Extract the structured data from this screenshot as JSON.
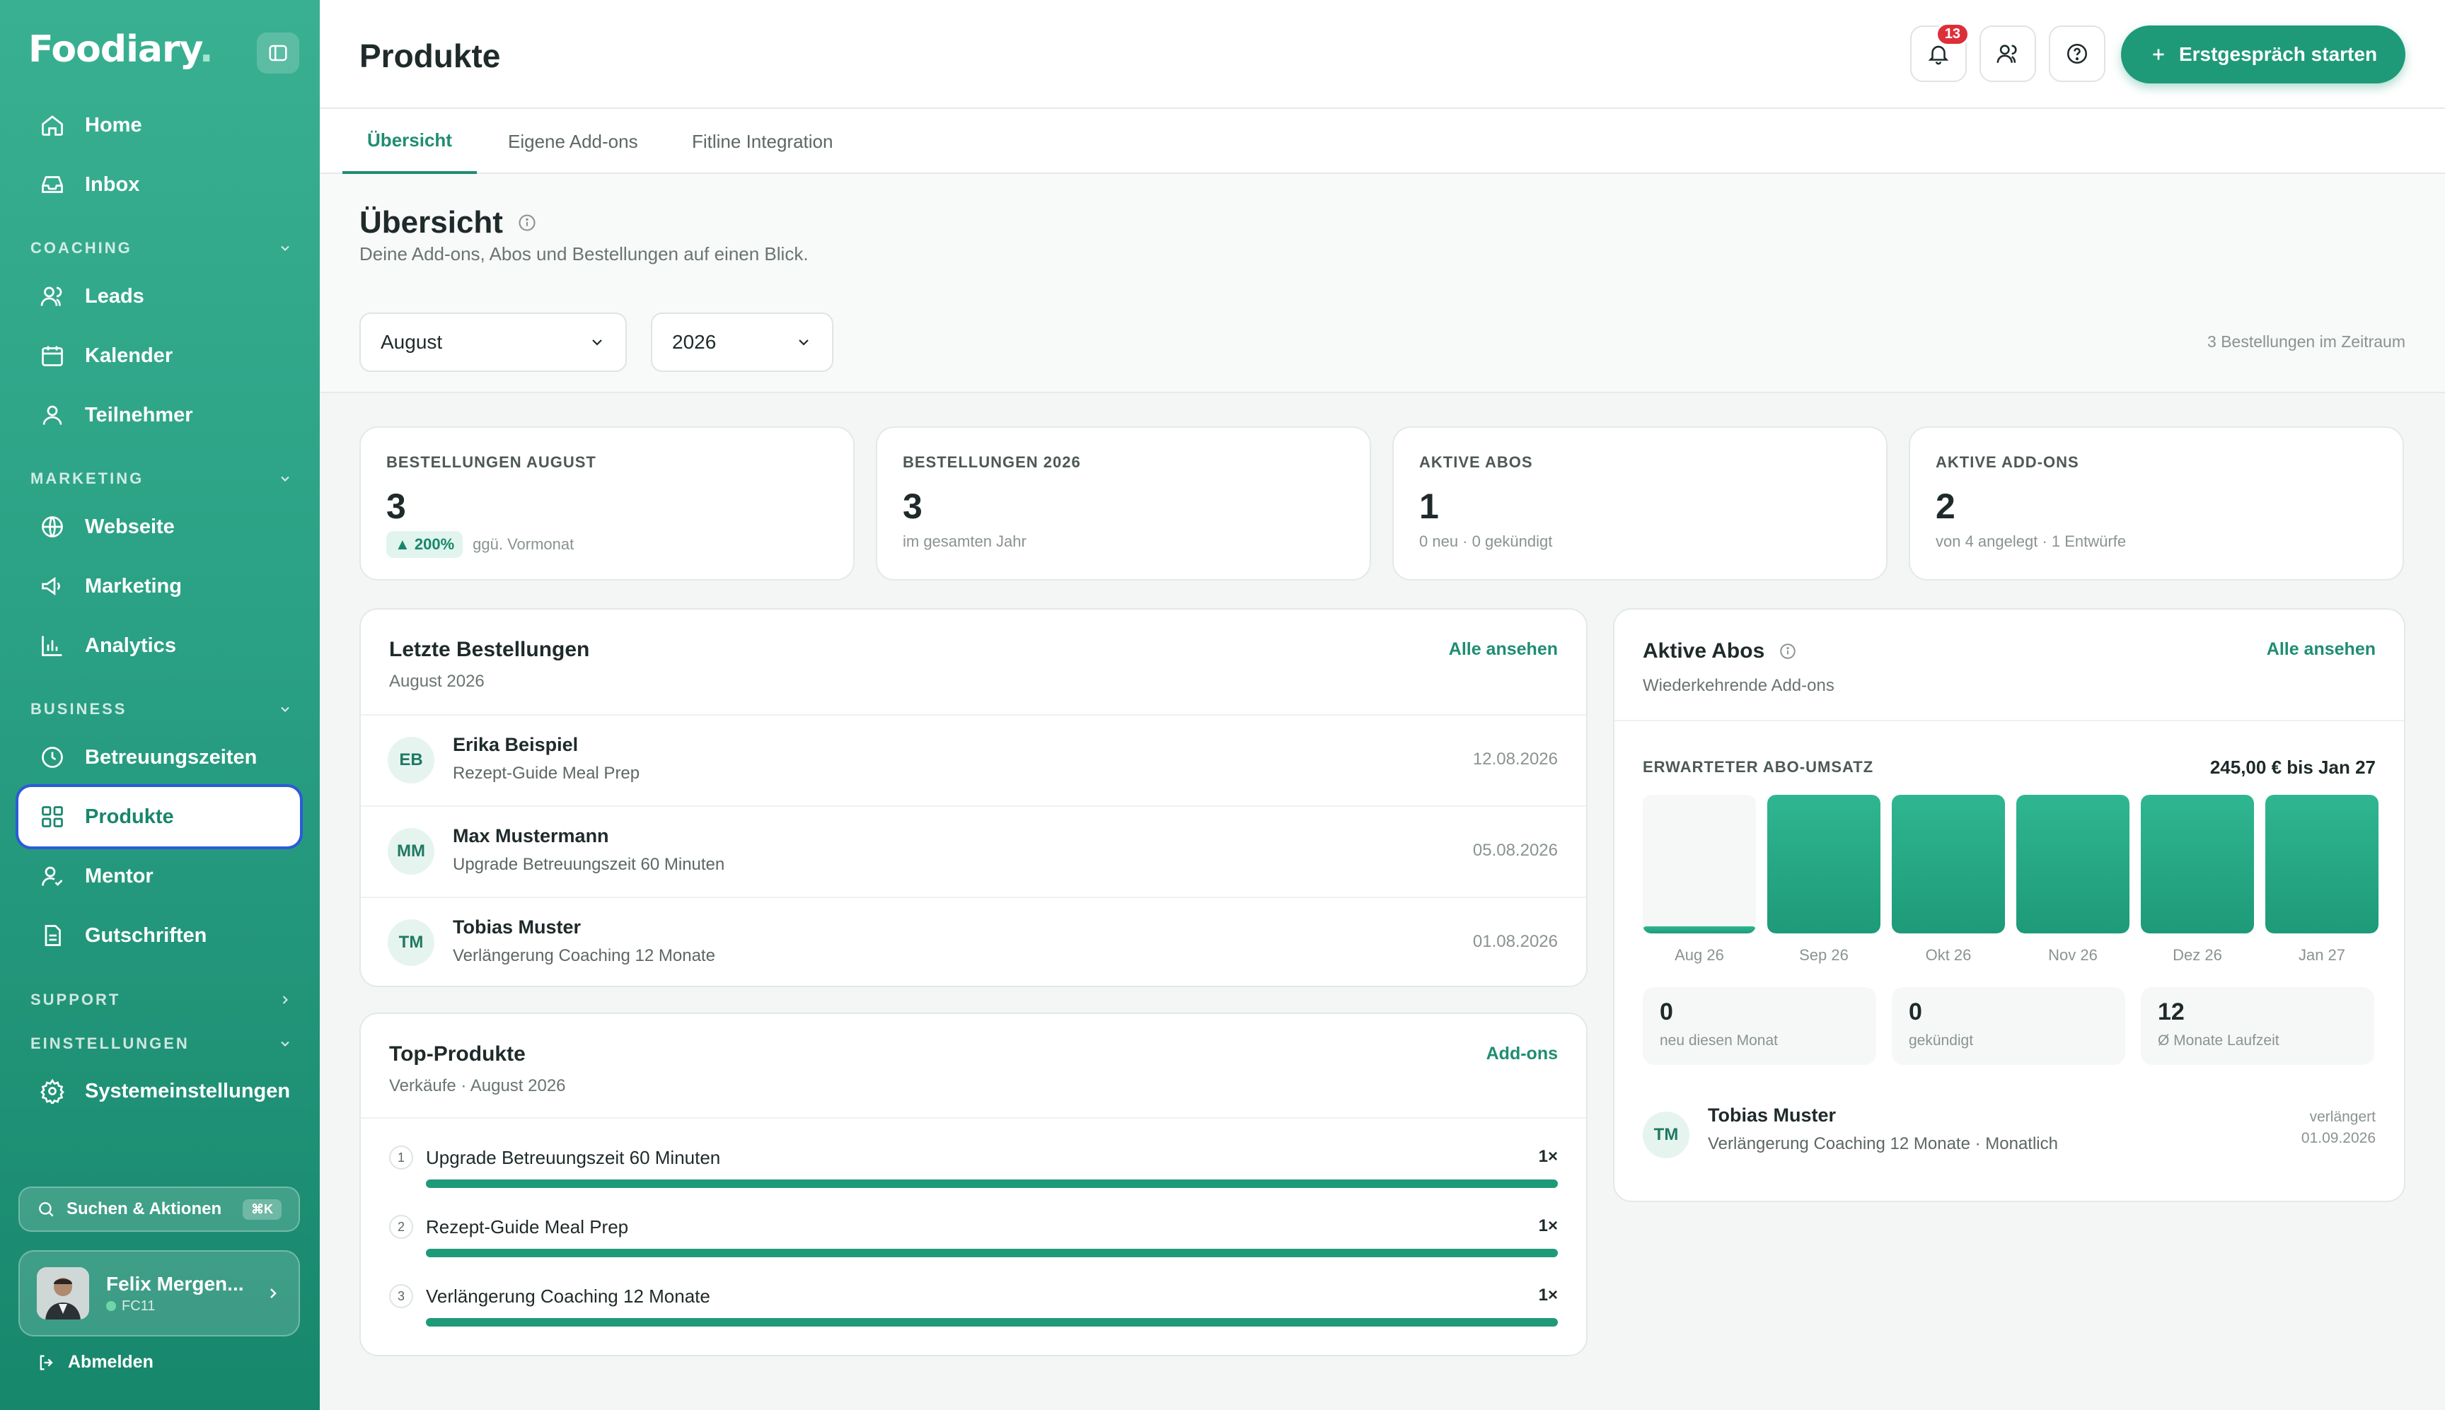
{
  "app": {
    "logo_text": "Foodiary",
    "logo_dot": "."
  },
  "sidebar": {
    "home": "Home",
    "inbox": "Inbox",
    "section_coaching": "COACHING",
    "leads": "Leads",
    "kalender": "Kalender",
    "teilnehmer": "Teilnehmer",
    "section_marketing": "MARKETING",
    "webseite": "Webseite",
    "marketing": "Marketing",
    "analytics": "Analytics",
    "section_business": "BUSINESS",
    "betreuungszeiten": "Betreuungszeiten",
    "produkte": "Produkte",
    "mentor": "Mentor",
    "gutschriften": "Gutschriften",
    "section_support": "SUPPORT",
    "section_einstellungen": "EINSTELLUNGEN",
    "systemeinstellungen": "Systemeinstellungen",
    "search_label": "Suchen & Aktionen",
    "search_shortcut": "⌘K",
    "user_name": "Felix Mergen...",
    "user_code": "FC11",
    "logout": "Abmelden"
  },
  "header": {
    "title": "Produkte",
    "notification_count": "13",
    "cta_label": "Erstgespräch starten"
  },
  "tabs": [
    "Übersicht",
    "Eigene Add-ons",
    "Fitline Integration"
  ],
  "overview": {
    "title": "Übersicht",
    "subtitle": "Deine Add-ons, Abos und Bestellungen auf einen Blick.",
    "month_select": "August",
    "year_select": "2026",
    "orders_in_period": "3 Bestellungen im Zeitraum"
  },
  "kpis": [
    {
      "label": "BESTELLUNGEN AUGUST",
      "value": "3",
      "trend": "▲ 200%",
      "sub": "ggü. Vormonat"
    },
    {
      "label": "BESTELLUNGEN 2026",
      "value": "3",
      "sub": "im gesamten Jahr"
    },
    {
      "label": "AKTIVE ABOS",
      "value": "1",
      "sub": "0 neu · 0 gekündigt"
    },
    {
      "label": "AKTIVE ADD-ONS",
      "value": "2",
      "sub": "von 4 angelegt · 1 Entwürfe"
    }
  ],
  "recent_orders": {
    "title": "Letzte Bestellungen",
    "subtitle": "August 2026",
    "link": "Alle ansehen",
    "rows": [
      {
        "initials": "EB",
        "name": "Erika Beispiel",
        "product": "Rezept-Guide Meal Prep",
        "date": "12.08.2026"
      },
      {
        "initials": "MM",
        "name": "Max Mustermann",
        "product": "Upgrade Betreuungszeit 60 Minuten",
        "date": "05.08.2026"
      },
      {
        "initials": "TM",
        "name": "Tobias Muster",
        "product": "Verlängerung Coaching 12 Monate",
        "date": "01.08.2026"
      }
    ]
  },
  "top_products": {
    "title": "Top-Produkte",
    "subtitle": "Verkäufe · August 2026",
    "link": "Add-ons",
    "rows": [
      {
        "rank": "1",
        "name": "Upgrade Betreuungszeit 60 Minuten",
        "qty": "1×",
        "share": 1.0
      },
      {
        "rank": "2",
        "name": "Rezept-Guide Meal Prep",
        "qty": "1×",
        "share": 1.0
      },
      {
        "rank": "3",
        "name": "Verlängerung Coaching 12 Monate",
        "qty": "1×",
        "share": 1.0
      }
    ]
  },
  "active_abos": {
    "title": "Aktive Abos",
    "subtitle": "Wiederkehrende Add-ons",
    "link": "Alle ansehen",
    "revenue_label": "ERWARTETER ABO-UMSATZ",
    "revenue_value": "245,00 € bis Jan 27",
    "stats": [
      {
        "value": "0",
        "label": "neu diesen Monat"
      },
      {
        "value": "0",
        "label": "gekündigt"
      },
      {
        "value": "12",
        "label": "Ø Monate Laufzeit"
      }
    ],
    "subscriber": {
      "initials": "TM",
      "name": "Tobias Muster",
      "product": "Verlängerung Coaching 12 Monate · Monatlich",
      "status": "verlängert",
      "date": "01.09.2026"
    }
  },
  "chart_data": {
    "type": "bar",
    "title": "ERWARTETER ABO-UMSATZ",
    "categories": [
      "Aug 26",
      "Sep 26",
      "Okt 26",
      "Nov 26",
      "Dez 26",
      "Jan 27"
    ],
    "values": [
      0.05,
      1,
      1,
      1,
      1,
      1
    ],
    "ylim": [
      0,
      1
    ],
    "grid": false
  },
  "colors": {
    "accent": "#1f9a79",
    "sidebar": "#2aa084",
    "badge": "#dd2f3a"
  }
}
